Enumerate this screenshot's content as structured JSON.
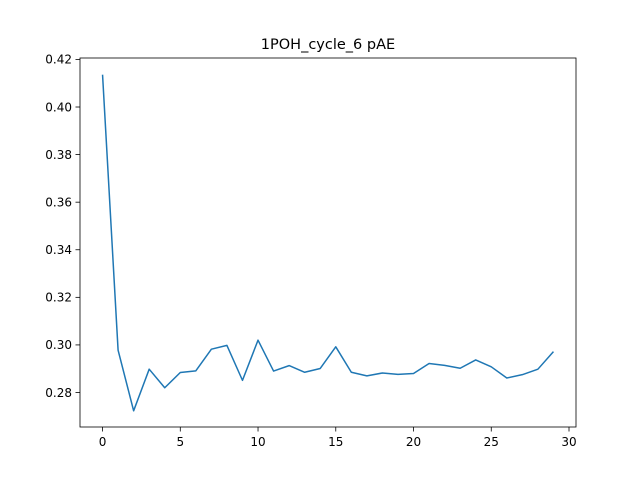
{
  "chart_data": {
    "type": "line",
    "title": "1POH_cycle_6 pAE",
    "xlabel": "",
    "ylabel": "",
    "xlim": [
      -1.45,
      30.45
    ],
    "ylim": [
      0.2655,
      0.4206
    ],
    "x_ticks": [
      0,
      5,
      10,
      15,
      20,
      25,
      30
    ],
    "y_ticks": [
      0.28,
      0.3,
      0.32,
      0.34,
      0.36,
      0.38,
      0.4,
      0.42
    ],
    "x_tick_labels": [
      "0",
      "5",
      "10",
      "15",
      "20",
      "25",
      "30"
    ],
    "y_tick_labels": [
      "0.28",
      "0.30",
      "0.32",
      "0.34",
      "0.36",
      "0.38",
      "0.40",
      "0.42"
    ],
    "grid": false,
    "legend": "none",
    "line_color": "#1f77b4",
    "series": [
      {
        "x": [
          0,
          1,
          2,
          3,
          4,
          5,
          6,
          7,
          8,
          9,
          10,
          11,
          12,
          13,
          14,
          15,
          16,
          17,
          18,
          19,
          20,
          21,
          22,
          23,
          24,
          25,
          26,
          27,
          28,
          29
        ],
        "values": [
          0.4136,
          0.2978,
          0.2723,
          0.2898,
          0.282,
          0.2884,
          0.2891,
          0.2982,
          0.2998,
          0.2851,
          0.302,
          0.289,
          0.2913,
          0.2885,
          0.2901,
          0.2992,
          0.2885,
          0.287,
          0.2882,
          0.2876,
          0.288,
          0.2922,
          0.2914,
          0.2902,
          0.2937,
          0.2908,
          0.2861,
          0.2875,
          0.2898,
          0.2972
        ]
      }
    ]
  }
}
